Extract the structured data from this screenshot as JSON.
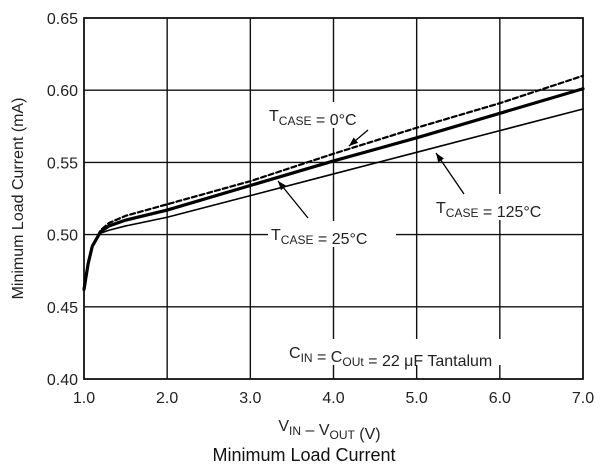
{
  "caption": "Minimum Load Current",
  "chart_data": {
    "type": "line",
    "xlabel": {
      "parts": [
        {
          "text": "V",
          "sub": "IN"
        },
        {
          "text": " – V",
          "sub": "OUT"
        },
        {
          "text": " (V)"
        }
      ]
    },
    "ylabel": "Minimum Load Current (mA)",
    "xlim": [
      1.0,
      7.0
    ],
    "ylim": [
      0.4,
      0.65
    ],
    "xticks": [
      1.0,
      2.0,
      3.0,
      4.0,
      5.0,
      6.0,
      7.0
    ],
    "xtick_labels": [
      "1.0",
      "2.0",
      "3.0",
      "4.0",
      "5.0",
      "6.0",
      "7.0"
    ],
    "yticks": [
      0.4,
      0.45,
      0.5,
      0.55,
      0.6,
      0.65
    ],
    "ytick_labels": [
      "0.40",
      "0.45",
      "0.50",
      "0.55",
      "0.60",
      "0.65"
    ],
    "grid": true,
    "series": [
      {
        "name": "TCASE = 0°C",
        "style": "dashed",
        "width": 2.2,
        "points": [
          [
            1.0,
            0.462
          ],
          [
            1.05,
            0.48
          ],
          [
            1.1,
            0.492
          ],
          [
            1.2,
            0.503
          ],
          [
            1.3,
            0.508
          ],
          [
            1.5,
            0.513
          ],
          [
            2.0,
            0.521
          ],
          [
            3.0,
            0.537
          ],
          [
            4.0,
            0.556
          ],
          [
            5.0,
            0.574
          ],
          [
            6.0,
            0.591
          ],
          [
            7.0,
            0.61
          ]
        ]
      },
      {
        "name": "TCASE = 25°C",
        "style": "solid",
        "width": 3.2,
        "points": [
          [
            1.0,
            0.462
          ],
          [
            1.05,
            0.48
          ],
          [
            1.1,
            0.492
          ],
          [
            1.2,
            0.502
          ],
          [
            1.3,
            0.506
          ],
          [
            1.5,
            0.51
          ],
          [
            2.0,
            0.517
          ],
          [
            3.0,
            0.534
          ],
          [
            4.0,
            0.551
          ],
          [
            5.0,
            0.567
          ],
          [
            6.0,
            0.584
          ],
          [
            7.0,
            0.601
          ]
        ]
      },
      {
        "name": "TCASE = 125°C",
        "style": "solid",
        "width": 1.6,
        "points": [
          [
            1.0,
            0.462
          ],
          [
            1.05,
            0.48
          ],
          [
            1.1,
            0.492
          ],
          [
            1.2,
            0.501
          ],
          [
            1.3,
            0.503
          ],
          [
            1.5,
            0.506
          ],
          [
            2.0,
            0.512
          ],
          [
            3.0,
            0.527
          ],
          [
            4.0,
            0.542
          ],
          [
            5.0,
            0.557
          ],
          [
            6.0,
            0.572
          ],
          [
            7.0,
            0.587
          ]
        ]
      }
    ],
    "annotations": [
      {
        "id": "t0",
        "parts": [
          {
            "text": "T",
            "sub": "CASE"
          },
          {
            "text": " = 0°C"
          }
        ],
        "arrow": true
      },
      {
        "id": "t25",
        "parts": [
          {
            "text": "T",
            "sub": "CASE"
          },
          {
            "text": " = 25°C"
          }
        ],
        "arrow": true
      },
      {
        "id": "t125",
        "parts": [
          {
            "text": "T",
            "sub": "CASE"
          },
          {
            "text": " = 125°C"
          }
        ],
        "arrow": true
      },
      {
        "id": "cap",
        "parts": [
          {
            "text": "C",
            "sub": "IN"
          },
          {
            "text": " = C",
            "sub": "OUt"
          },
          {
            "text": " = 22 μF Tantalum"
          }
        ],
        "arrow": false
      }
    ]
  }
}
